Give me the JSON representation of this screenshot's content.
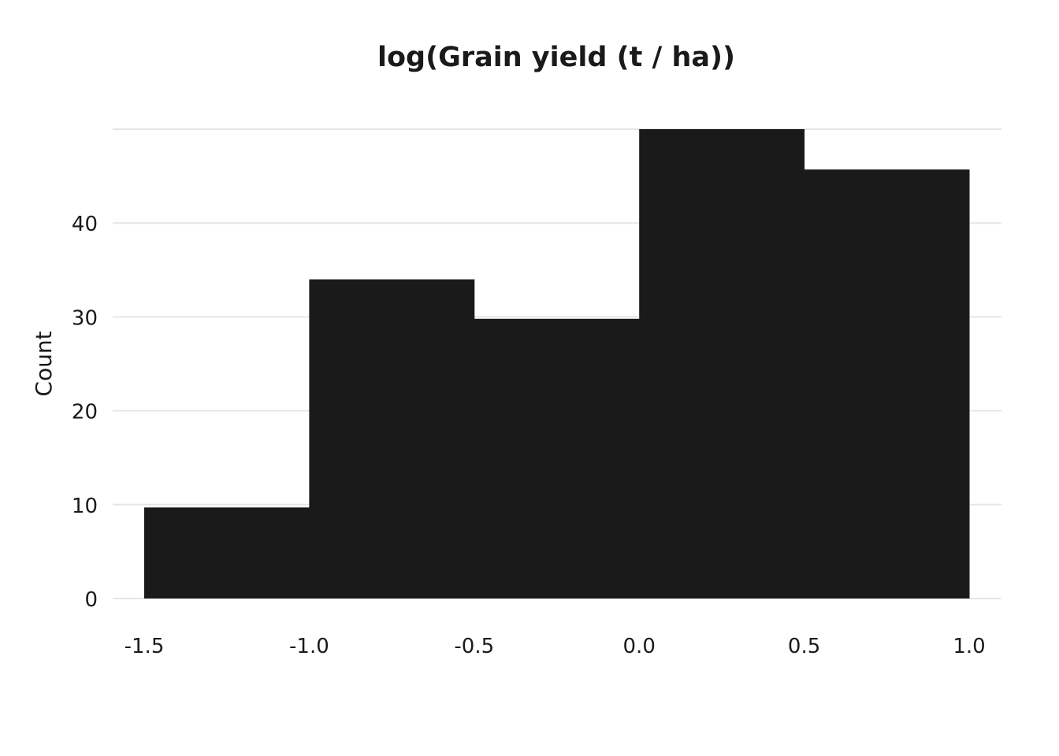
{
  "chart_data": {
    "type": "bar",
    "title": "log(Grain yield (t / ha))",
    "xlabel": "",
    "ylabel": "Count",
    "bins": [
      {
        "start": -1.5,
        "end": -1.0,
        "count": 9.7
      },
      {
        "start": -1.0,
        "end": -0.5,
        "count": 34
      },
      {
        "start": -0.5,
        "end": 0.0,
        "count": 29.8
      },
      {
        "start": 0.0,
        "end": 0.5,
        "count": 50
      },
      {
        "start": 0.5,
        "end": 1.0,
        "count": 45.7
      }
    ],
    "xlim": [
      -1.5,
      1.0
    ],
    "ylim": [
      0,
      50
    ],
    "x_ticks": [
      "-1.5",
      "-1.0",
      "-0.5",
      "0.0",
      "0.5",
      "1.0"
    ],
    "x_tick_values": [
      -1.5,
      -1.0,
      -0.5,
      0.0,
      0.5,
      1.0
    ],
    "y_ticks": [
      "0",
      "10",
      "20",
      "30",
      "40"
    ],
    "y_tick_values": [
      0,
      10,
      20,
      30,
      40
    ],
    "grid_values": [
      0,
      10,
      20,
      30,
      40,
      50
    ],
    "grid": true,
    "bar_color": "#1a1a1a"
  }
}
